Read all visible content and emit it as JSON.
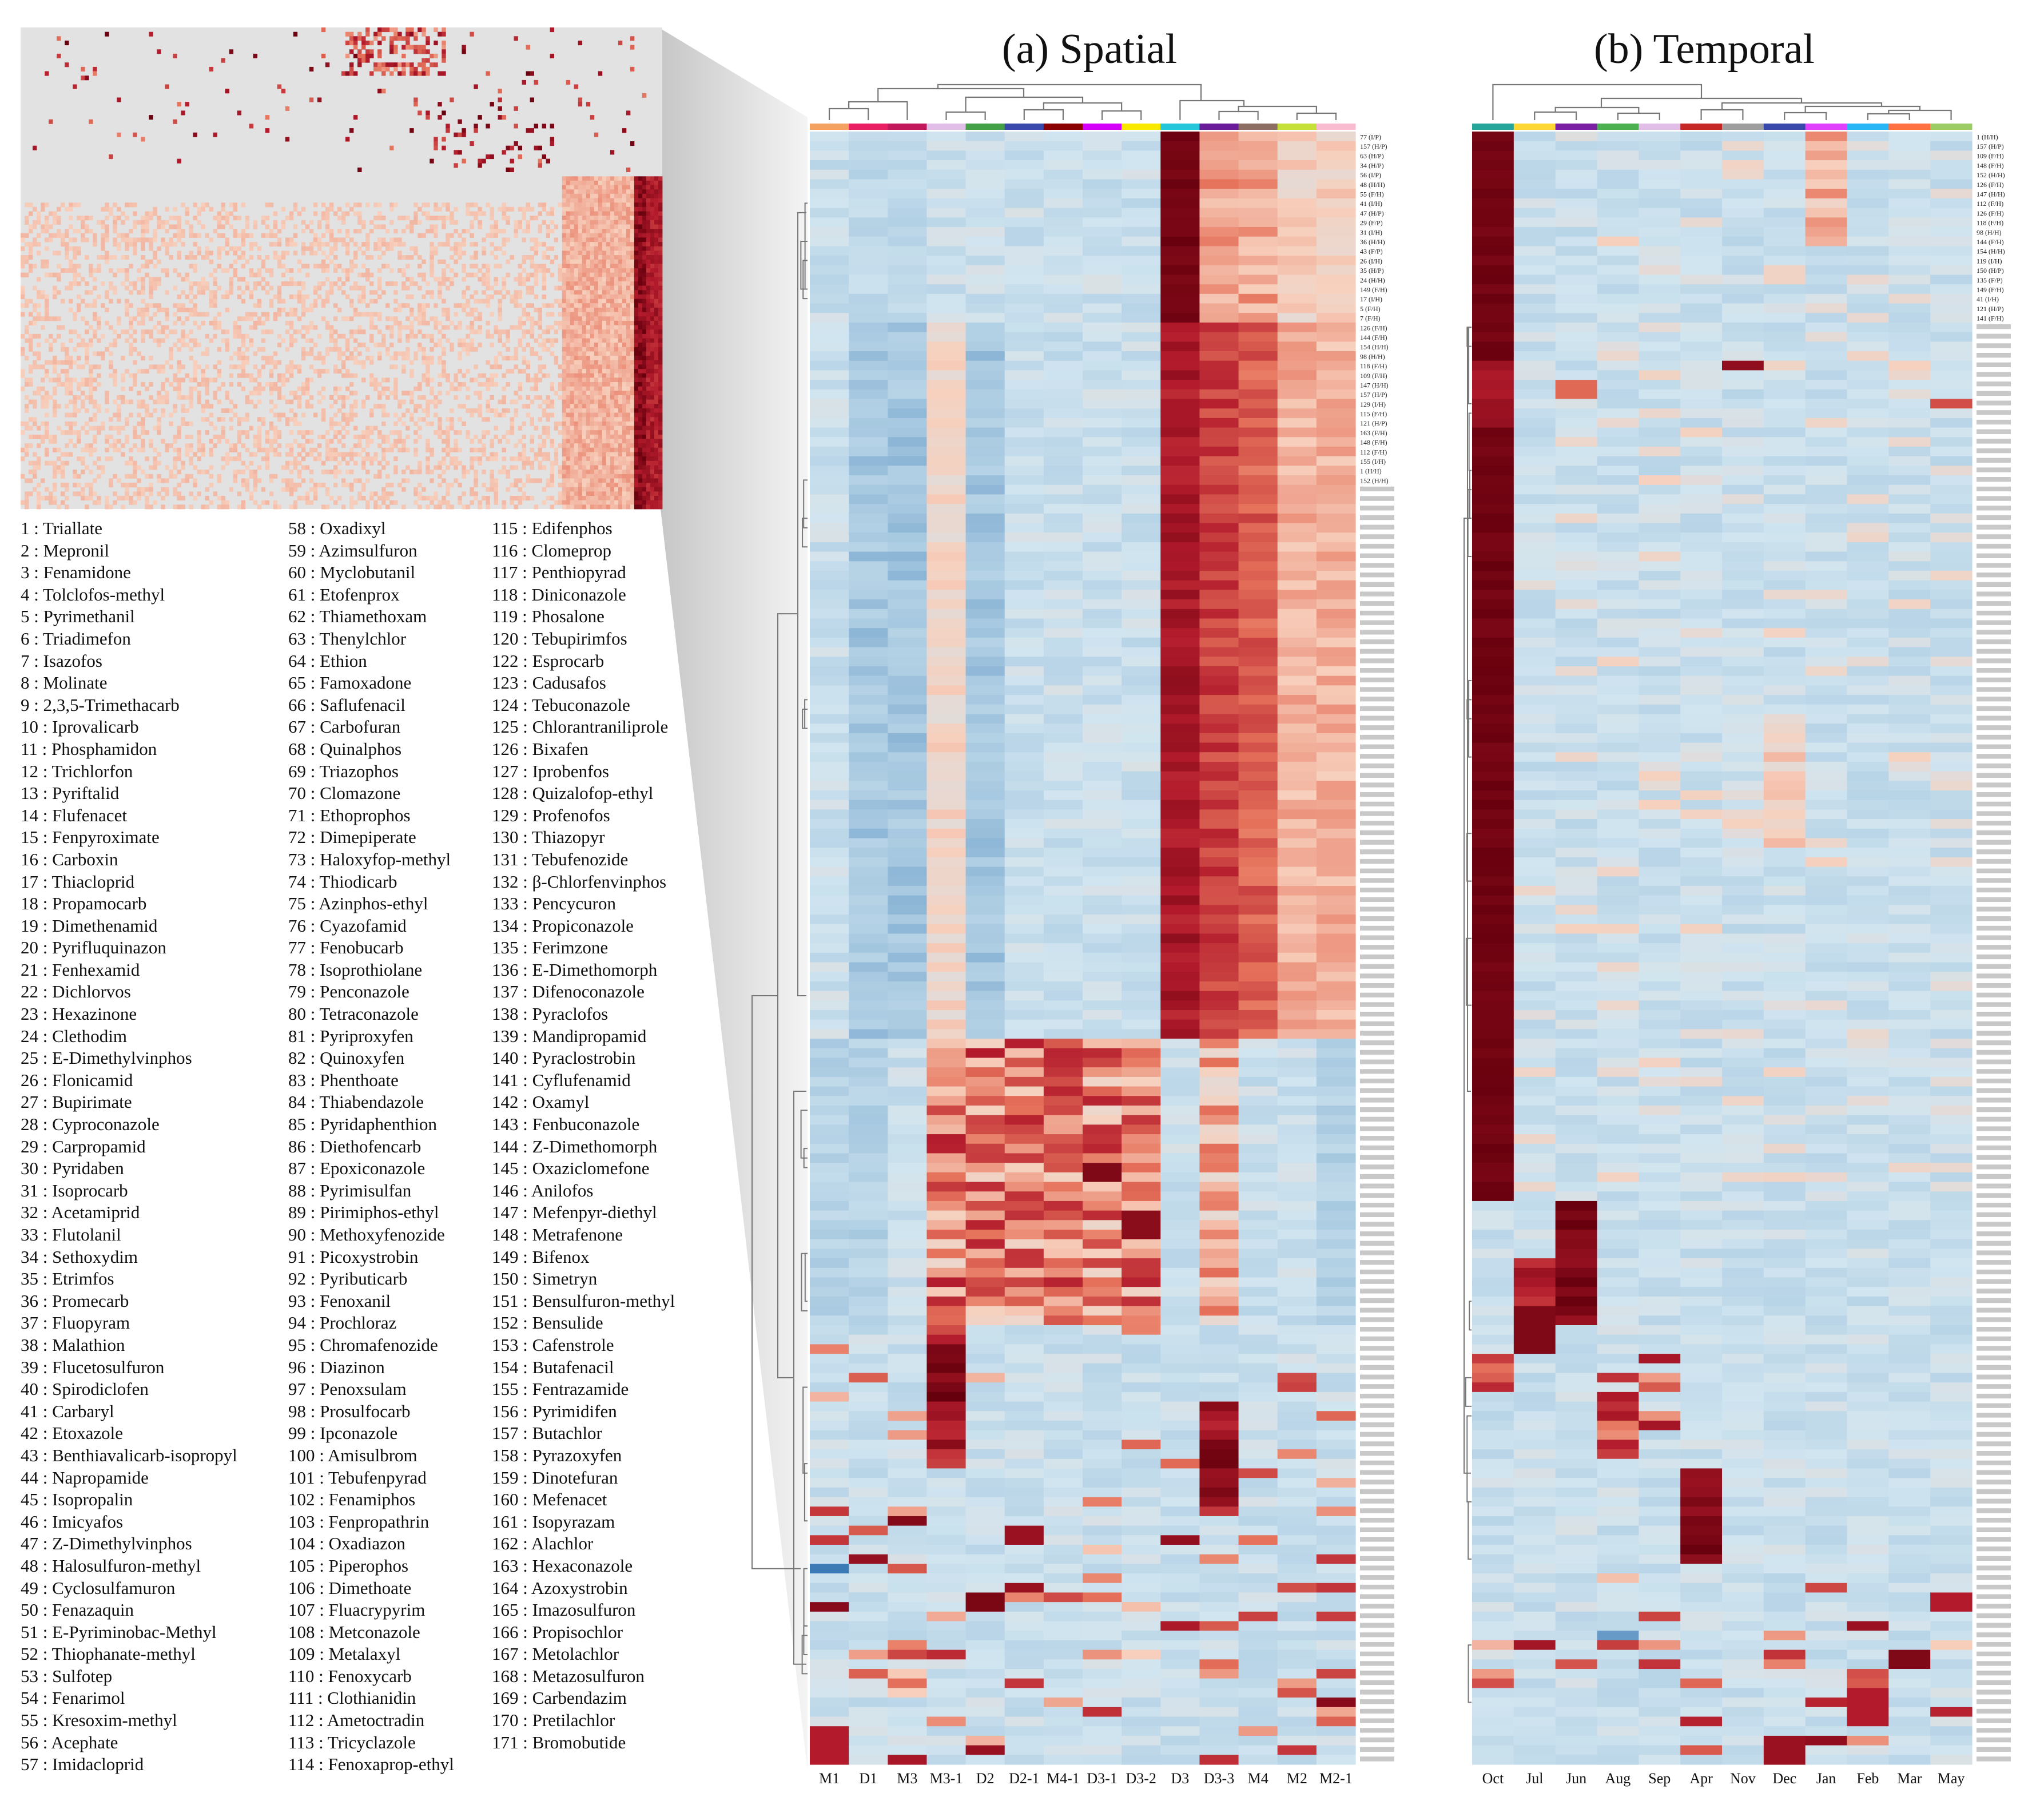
{
  "chart_data": [
    {
      "type": "heatmap",
      "title": "(a) Spatial",
      "x_categories": [
        "M1",
        "D1",
        "M3",
        "M3-1",
        "D2",
        "D2-1",
        "M4-1",
        "D3-1",
        "D3-2",
        "D3",
        "D3-3",
        "M4",
        "M2",
        "M2-1"
      ],
      "row_labels": [
        "77 (I/P)",
        "157 (H/P)",
        "63 (H/P)",
        "34 (H/P)",
        "56 (I/P)",
        "48 (H/H)",
        "55 (F/H)",
        "41 (I/H)",
        "47 (H/P)",
        "29 (F/P)",
        "31 (I/H)",
        "36 (H/H)",
        "43 (F/P)",
        "26 (I/H)",
        "35 (H/P)",
        "24 (H/H)",
        "149 (F/H)",
        "17 (I/H)",
        "5 (F/H)",
        "7 (F/H)",
        "126 (F/H)",
        "144 (F/H)",
        "154 (H/H)",
        "98 (H/H)",
        "118 (F/H)",
        "109 (F/H)",
        "147 (H/H)",
        "157 (H/P)",
        "129 (I/H)",
        "115 (F/H)",
        "121 (H/P)",
        "163 (F/H)",
        "148 (F/H)",
        "112 (F/H)",
        "155 (I/H)",
        "1 (H/H)",
        "152 (H/H)"
      ],
      "note": "Clustered heatmap of 171 pesticide residues across sampling sites; values are relative concentrations (0 = low/blue, 1 = high/dark red). Row labels beyond those listed are too small to read.",
      "color_scale": [
        "#2166ac",
        "#a6c8e0",
        "#d1e5f0",
        "#f7d0bd",
        "#e6735c",
        "#b31b2c",
        "#67000d"
      ]
    },
    {
      "type": "heatmap",
      "title": "(b) Temporal",
      "x_categories": [
        "Oct",
        "Jul",
        "Jun",
        "Aug",
        "Sep",
        "Apr",
        "Nov",
        "Dec",
        "Jan",
        "Feb",
        "Mar",
        "May"
      ],
      "row_labels": [
        "1 (H/H)",
        "157 (H/P)",
        "109 (F/H)",
        "148 (F/H)",
        "152 (H/H)",
        "126 (F/H)",
        "147 (H/H)",
        "112 (F/H)",
        "126 (F/H)",
        "118 (F/H)",
        "98 (H/H)",
        "144 (F/H)",
        "154 (H/H)",
        "119 (I/H)",
        "150 (H/P)",
        "135 (F/P)",
        "149 (F/H)",
        "41 (I/H)",
        "121 (H/P)",
        "141 (F/H)"
      ],
      "note": "Clustered heatmap of 171 pesticide residues across sampling months; values are relative concentrations (0 = low/blue, 1 = high/dark red).",
      "color_scale": [
        "#2166ac",
        "#a6c8e0",
        "#d1e5f0",
        "#f7d0bd",
        "#e6735c",
        "#b31b2c",
        "#67000d"
      ]
    }
  ],
  "legend": {
    "col1": [
      "1 : Triallate",
      "2 : Mepronil",
      "3 : Fenamidone",
      "4 : Tolclofos-methyl",
      "5 : Pyrimethanil",
      "6 : Triadimefon",
      "7 : Isazofos",
      "8 : Molinate",
      "9 : 2,3,5-Trimethacarb",
      "10 : Iprovalicarb",
      "11 : Phosphamidon",
      "12 : Trichlorfon",
      "13 : Pyriftalid",
      "14 : Flufenacet",
      "15 : Fenpyroximate",
      "16 : Carboxin",
      "17 : Thiacloprid",
      "18 : Propamocarb",
      "19 : Dimethenamid",
      "20 : Pyrifluquinazon",
      "21 : Fenhexamid",
      "22 : Dichlorvos",
      "23 : Hexazinone",
      "24 : Clethodim",
      "25 : E-Dimethylvinphos",
      "26 : Flonicamid",
      "27 : Bupirimate",
      "28 : Cyproconazole",
      "29 : Carpropamid",
      "30 : Pyridaben",
      "31 : Isoprocarb",
      "32 : Acetamiprid",
      "33 : Flutolanil",
      "34 : Sethoxydim",
      "35 : Etrimfos",
      "36 : Promecarb",
      "37 : Fluopyram",
      "38 : Malathion",
      "39 : Flucetosulfuron",
      "40 : Spirodiclofen",
      "41 : Carbaryl",
      "42 : Etoxazole",
      "43 : Benthiavalicarb-isopropyl",
      "44 : Napropamide",
      "45 : Isopropalin",
      "46 : Imicyafos",
      "47 : Z-Dimethylvinphos",
      "48 : Halosulfuron-methyl",
      "49 : Cyclosulfamuron",
      "50 : Fenazaquin",
      "51 : E-Pyriminobac-Methyl",
      "52 : Thiophanate-methyl",
      "53 : Sulfotep",
      "54 : Fenarimol",
      "55 : Kresoxim-methyl",
      "56 : Acephate",
      "57 : Imidacloprid"
    ],
    "col2": [
      "58 : Oxadixyl",
      "59 : Azimsulfuron",
      "60 : Myclobutanil",
      "61 : Etofenprox",
      "62 : Thiamethoxam",
      "63 : Thenylchlor",
      "64 : Ethion",
      "65 : Famoxadone",
      "66 : Saflufenacil",
      "67 : Carbofuran",
      "68 : Quinalphos",
      "69 : Triazophos",
      "70 : Clomazone",
      "71 : Ethoprophos",
      "72 : Dimepiperate",
      "73 : Haloxyfop-methyl",
      "74 : Thiodicarb",
      "75 : Azinphos-ethyl",
      "76 : Cyazofamid",
      "77 : Fenobucarb",
      "78 : Isoprothiolane",
      "79 : Penconazole",
      "80 : Tetraconazole",
      "81 : Pyriproxyfen",
      "82 : Quinoxyfen",
      "83 : Phenthoate",
      "84 : Thiabendazole",
      "85 : Pyridaphenthion",
      "86 : Diethofencarb",
      "87 : Epoxiconazole",
      "88 : Pyrimisulfan",
      "89 : Pirimiphos-ethyl",
      "90 : Methoxyfenozide",
      "91 : Picoxystrobin",
      "92 : Pyributicarb",
      "93 : Fenoxanil",
      "94 : Prochloraz",
      "95 : Chromafenozide",
      "96 : Diazinon",
      "97 : Penoxsulam",
      "98 : Prosulfocarb",
      "99 : Ipconazole",
      "100 : Amisulbrom",
      "101 : Tebufenpyrad",
      "102 : Fenamiphos",
      "103 : Fenpropathrin",
      "104 : Oxadiazon",
      "105 : Piperophos",
      "106 : Dimethoate",
      "107 : Fluacrypyrim",
      "108 : Metconazole",
      "109 : Metalaxyl",
      "110 : Fenoxycarb",
      "111 : Clothianidin",
      "112 : Ametoctradin",
      "113 : Tricyclazole",
      "114 : Fenoxaprop-ethyl"
    ],
    "col3": [
      "115 : Edifenphos",
      "116 : Clomeprop",
      "117 : Penthiopyrad",
      "118 : Diniconazole",
      "119 : Phosalone",
      "120 : Tebupirimfos",
      "122 : Esprocarb",
      "123 : Cadusafos",
      "124 : Tebuconazole",
      "125 : Chlorantraniliprole",
      "126 : Bixafen",
      "127 : Iprobenfos",
      "128 : Quizalofop-ethyl",
      "129 : Profenofos",
      "130 : Thiazopyr",
      "131 : Tebufenozide",
      "132 : β-Chlorfenvinphos",
      "133 : Pencycuron",
      "134 : Propiconazole",
      "135 : Ferimzone",
      "136 : E-Dimethomorph",
      "137 : Difenoconazole",
      "138 : Pyraclofos",
      "139 : Mandipropamid",
      "140 : Pyraclostrobin",
      "141 : Cyflufenamid",
      "142 : Oxamyl",
      "143 : Fenbuconazole",
      "144 : Z-Dimethomorph",
      "145 : Oxaziclomefone",
      "146 : Anilofos",
      "147 : Mefenpyr-diethyl",
      "148 : Metrafenone",
      "149 : Bifenox",
      "150 : Simetryn",
      "151 : Bensulfuron-methyl",
      "152 : Bensulide",
      "153 : Cafenstrole",
      "154 : Butafenacil",
      "155 : Fentrazamide",
      "156 : Pyrimidifen",
      "157 : Butachlor",
      "158 : Pyrazoxyfen",
      "159 : Dinotefuran",
      "160 : Mefenacet",
      "161 : Isopyrazam",
      "162 : Alachlor",
      "163 : Hexaconazole",
      "164 : Azoxystrobin",
      "165 : Imazosulfuron",
      "166 : Propisochlor",
      "167 : Metolachlor",
      "168 : Metazosulfuron",
      "169 : Carbendazim",
      "170 : Pretilachlor",
      "171 : Bromobutide"
    ]
  },
  "colors": {
    "cluster_bar_a": [
      "#f4a261",
      "#e91e63",
      "#c2185b",
      "#e1bee7",
      "#43a047",
      "#3949ab",
      "#8b0000",
      "#d500f9",
      "#f9e900",
      "#26c6da",
      "#6a1b9a",
      "#8d6e63",
      "#c6e03a",
      "#f8bbd0"
    ],
    "cluster_bar_b": [
      "#26a69a",
      "#fdd835",
      "#7b1fa2",
      "#4caf50",
      "#e1bee7",
      "#c62828",
      "#9e9e9e",
      "#3949ab",
      "#e040fb",
      "#29b6f6",
      "#ff7043",
      "#9ccc65"
    ]
  }
}
